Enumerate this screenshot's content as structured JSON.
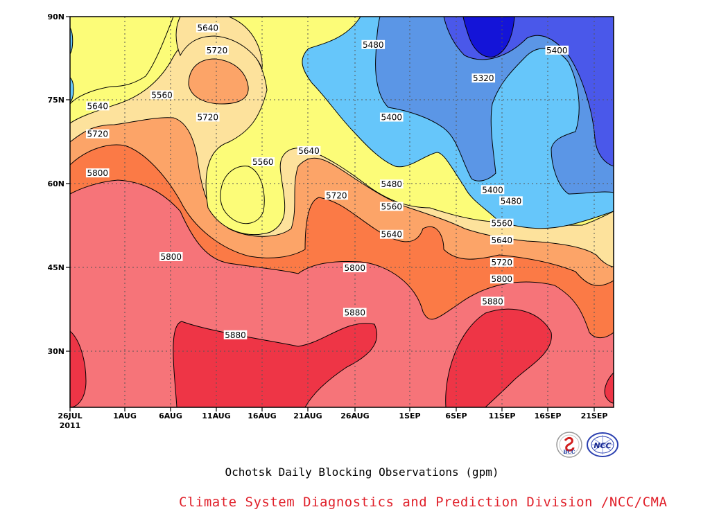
{
  "chart_data": {
    "type": "heatmap",
    "subtype": "filled-contour",
    "title": "Ochotsk Daily Blocking Observations (gpm)",
    "credit": "Climate System Diagnostics and Prediction Division /NCC/CMA",
    "x_ticks": [
      "26JUL",
      "1AUG",
      "6AUG",
      "11AUG",
      "16AUG",
      "21AUG",
      "26AUG",
      "1SEP",
      "6SEP",
      "11SEP",
      "16SEP",
      "21SEP"
    ],
    "x_year_label": "2011",
    "y_ticks": [
      "90N",
      "75N",
      "60N",
      "45N",
      "30N"
    ],
    "xlim": [
      "26JUL2011",
      "25SEP2011"
    ],
    "ylim": [
      "20N",
      "90N"
    ],
    "grid": true,
    "levels": [
      5320,
      5400,
      5480,
      5560,
      5640,
      5720,
      5800,
      5880
    ],
    "colors": {
      "lt5320": "#1414d8",
      "5320-5400": "#4a58ea",
      "5400-5480": "#5b96e6",
      "5480-5560": "#66c6fa",
      "5560-5640": "#fcfc78",
      "5640-5720": "#fde29c",
      "5720-5800": "#fca468",
      "5800-5880": "#fb7a46",
      "5880-5960": "#f67479",
      "gt5960": "#ee3546"
    },
    "contour_labels": [
      {
        "value": "5640",
        "date": "10AUG",
        "lat": "88N"
      },
      {
        "value": "5720",
        "date": "11AUG",
        "lat": "84N"
      },
      {
        "value": "5480",
        "date": "28AUG",
        "lat": "85N"
      },
      {
        "value": "5400",
        "date": "17SEP",
        "lat": "84N"
      },
      {
        "value": "5320",
        "date": "9SEP",
        "lat": "79N"
      },
      {
        "value": "5560",
        "date": "5AUG",
        "lat": "76N"
      },
      {
        "value": "5640",
        "date": "29JUL",
        "lat": "74N"
      },
      {
        "value": "5720",
        "date": "10AUG",
        "lat": "72N"
      },
      {
        "value": "5400",
        "date": "30AUG",
        "lat": "72N"
      },
      {
        "value": "5720",
        "date": "29JUL",
        "lat": "69N"
      },
      {
        "value": "5640",
        "date": "21AUG",
        "lat": "66N"
      },
      {
        "value": "5560",
        "date": "16AUG",
        "lat": "64N"
      },
      {
        "value": "5800",
        "date": "29JUL",
        "lat": "62N"
      },
      {
        "value": "5480",
        "date": "30AUG",
        "lat": "60N"
      },
      {
        "value": "5400",
        "date": "10SEP",
        "lat": "59N"
      },
      {
        "value": "5720",
        "date": "24AUG",
        "lat": "58N"
      },
      {
        "value": "5480",
        "date": "12SEP",
        "lat": "57N"
      },
      {
        "value": "5560",
        "date": "30AUG",
        "lat": "56N"
      },
      {
        "value": "5560",
        "date": "11SEP",
        "lat": "53N"
      },
      {
        "value": "5640",
        "date": "30AUG",
        "lat": "51N"
      },
      {
        "value": "5640",
        "date": "11SEP",
        "lat": "50N"
      },
      {
        "value": "5800",
        "date": "6AUG",
        "lat": "47N"
      },
      {
        "value": "5720",
        "date": "11SEP",
        "lat": "46N"
      },
      {
        "value": "5800",
        "date": "26AUG",
        "lat": "45N"
      },
      {
        "value": "5800",
        "date": "11SEP",
        "lat": "43N"
      },
      {
        "value": "5880",
        "date": "26AUG",
        "lat": "37N"
      },
      {
        "value": "5880",
        "date": "10SEP",
        "lat": "39N"
      },
      {
        "value": "5880",
        "date": "13AUG",
        "lat": "33N"
      }
    ]
  },
  "logos": {
    "left": {
      "text": "BCC",
      "icon": "bcc-logo-icon"
    },
    "right": {
      "text": "NCC",
      "icon": "ncc-logo-icon"
    }
  }
}
